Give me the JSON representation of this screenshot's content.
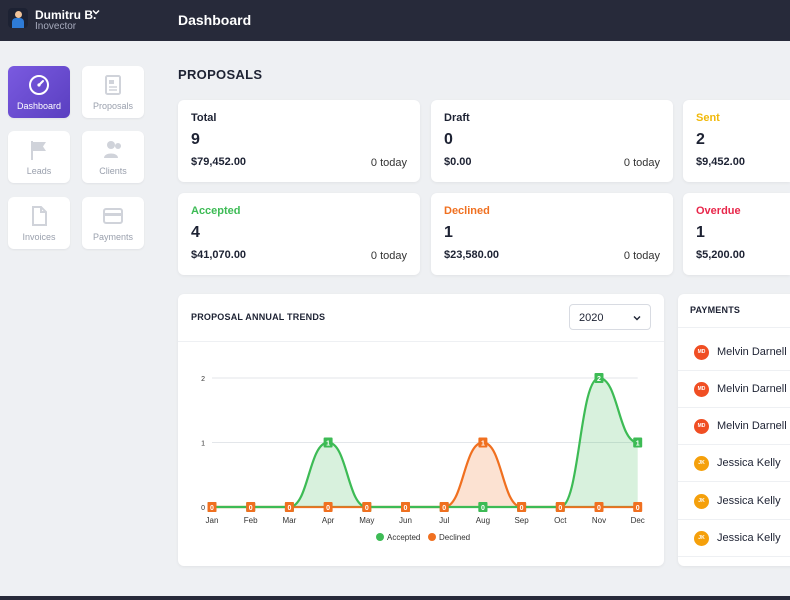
{
  "user": {
    "name": "Dumitru B.",
    "org": "Inovector"
  },
  "header": {
    "title": "Dashboard"
  },
  "nav": [
    {
      "label": "Dashboard",
      "icon": "gauge-icon"
    },
    {
      "label": "Proposals",
      "icon": "document-icon"
    },
    {
      "label": "Leads",
      "icon": "flag-icon"
    },
    {
      "label": "Clients",
      "icon": "users-icon"
    },
    {
      "label": "Invoices",
      "icon": "file-icon"
    },
    {
      "label": "Payments",
      "icon": "credit-card-icon"
    }
  ],
  "proposals": {
    "title": "PROPOSALS",
    "cards": [
      {
        "label": "Total",
        "count": "9",
        "amount": "$79,452.00",
        "today": "0 today",
        "color": "#1d2233"
      },
      {
        "label": "Draft",
        "count": "0",
        "amount": "$0.00",
        "today": "0 today",
        "color": "#1d2233"
      },
      {
        "label": "Sent",
        "count": "2",
        "amount": "$9,452.00",
        "today": "",
        "color": "#f1b90a"
      },
      {
        "label": "Accepted",
        "count": "4",
        "amount": "$41,070.00",
        "today": "0 today",
        "color": "#3dbb55"
      },
      {
        "label": "Declined",
        "count": "1",
        "amount": "$23,580.00",
        "today": "0 today",
        "color": "#f07020"
      },
      {
        "label": "Overdue",
        "count": "1",
        "amount": "$5,200.00",
        "today": "",
        "color": "#e8264a"
      }
    ]
  },
  "trends": {
    "title": "PROPOSAL ANNUAL TRENDS",
    "year": "2020"
  },
  "payments": {
    "title": "PAYMENTS",
    "items": [
      {
        "initials": "MD",
        "name": "Melvin Darnell",
        "color": "#f04e23"
      },
      {
        "initials": "MD",
        "name": "Melvin Darnell",
        "color": "#f04e23"
      },
      {
        "initials": "MD",
        "name": "Melvin Darnell",
        "color": "#f04e23"
      },
      {
        "initials": "JK",
        "name": "Jessica Kelly",
        "color": "#f5a00b"
      },
      {
        "initials": "JK",
        "name": "Jessica Kelly",
        "color": "#f5a00b"
      },
      {
        "initials": "JK",
        "name": "Jessica Kelly",
        "color": "#f5a00b"
      }
    ]
  },
  "chart_data": {
    "type": "area",
    "categories": [
      "Jan",
      "Feb",
      "Mar",
      "Apr",
      "May",
      "Jun",
      "Jul",
      "Aug",
      "Sep",
      "Oct",
      "Nov",
      "Dec"
    ],
    "series": [
      {
        "name": "Accepted",
        "color": "#3dbb55",
        "values": [
          0,
          0,
          0,
          1,
          0,
          0,
          0,
          0,
          0,
          0,
          2,
          1
        ]
      },
      {
        "name": "Declined",
        "color": "#f07020",
        "values": [
          0,
          0,
          0,
          0,
          0,
          0,
          0,
          1,
          0,
          0,
          0,
          0
        ]
      }
    ],
    "yticks": [
      0,
      1,
      2
    ],
    "ylim": [
      0,
      2
    ],
    "grid": true,
    "legend": "bottom"
  }
}
